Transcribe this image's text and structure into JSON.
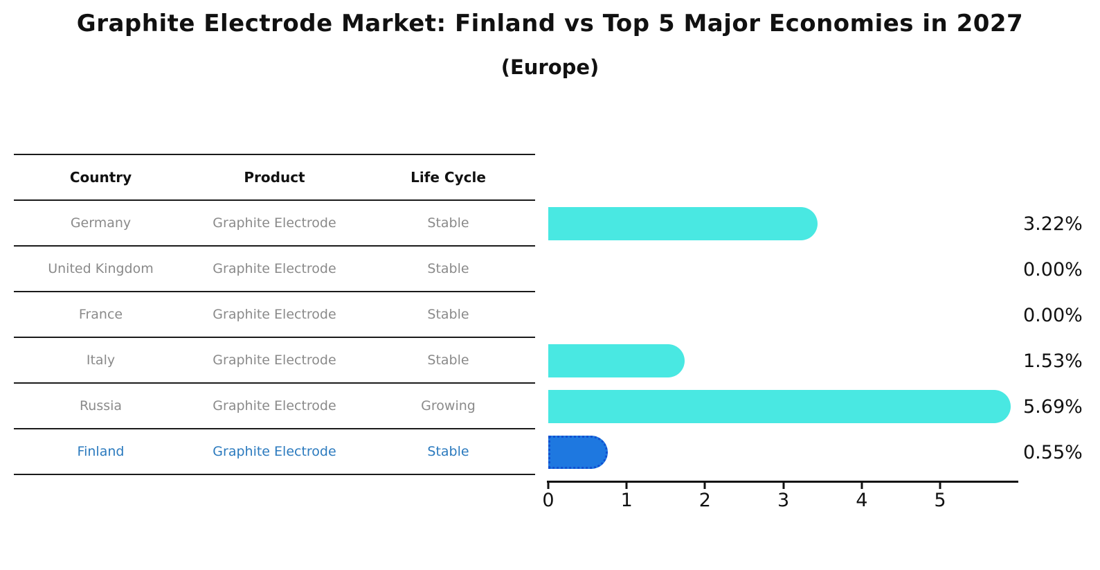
{
  "title": "Graphite Electrode Market: Finland vs Top 5 Major Economies in 2027",
  "subtitle": "(Europe)",
  "table": {
    "headers": [
      "Country",
      "Product",
      "Life Cycle"
    ],
    "rows": [
      {
        "country": "Germany",
        "product": "Graphite Electrode",
        "life_cycle": "Stable",
        "value": 3.22,
        "value_label": "3.22%",
        "highlight": false
      },
      {
        "country": "United Kingdom",
        "product": "Graphite Electrode",
        "life_cycle": "Stable",
        "value": 0.0,
        "value_label": "0.00%",
        "highlight": false
      },
      {
        "country": "France",
        "product": "Graphite Electrode",
        "life_cycle": "Stable",
        "value": 0.0,
        "value_label": "0.00%",
        "highlight": false
      },
      {
        "country": "Italy",
        "product": "Graphite Electrode",
        "life_cycle": "Stable",
        "value": 1.53,
        "value_label": "1.53%",
        "highlight": false
      },
      {
        "country": "Russia",
        "product": "Graphite Electrode",
        "life_cycle": "Growing",
        "value": 5.69,
        "value_label": "5.69%",
        "highlight": false
      },
      {
        "country": "Finland",
        "product": "Graphite Electrode",
        "life_cycle": "Stable",
        "value": 0.55,
        "value_label": "0.55%",
        "highlight": true
      }
    ]
  },
  "chart_data": {
    "type": "bar",
    "orientation": "horizontal",
    "title": "Graphite Electrode Market: Finland vs Top 5 Major Economies in 2027",
    "subtitle": "(Europe)",
    "categories": [
      "Germany",
      "United Kingdom",
      "France",
      "Italy",
      "Russia",
      "Finland"
    ],
    "values": [
      3.22,
      0.0,
      0.0,
      1.53,
      5.69,
      0.55
    ],
    "value_labels": [
      "3.22%",
      "0.00%",
      "0.00%",
      "1.53%",
      "5.69%",
      "0.55%"
    ],
    "xlabel": "",
    "ylabel": "",
    "x_ticks": [
      0,
      1,
      2,
      3,
      4,
      5
    ],
    "xlim": [
      0,
      6
    ],
    "grid": false,
    "legend": "none",
    "bar_color": "#49e8e2",
    "highlight_color": "#1e78e0",
    "highlight_edge_color": "#1050d0",
    "highlight_index": 5,
    "highlight_text_color": "#2b7abe"
  }
}
